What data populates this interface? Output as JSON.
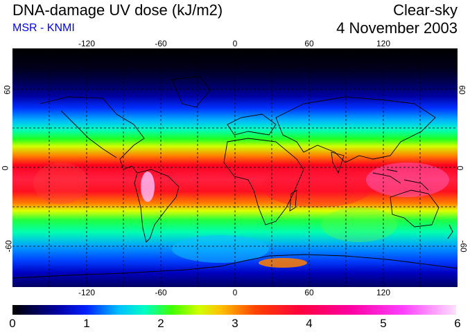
{
  "header": {
    "title": "DNA-damage UV dose (kJ/m2)",
    "source": "MSR - KNMI",
    "condition": "Clear-sky",
    "date": "4 November 2003"
  },
  "map": {
    "lon_labels_top": [
      "-120",
      "-60",
      "0",
      "60",
      "120"
    ],
    "lon_labels_bottom": [
      "-120",
      "-60",
      "0",
      "60",
      "120"
    ],
    "lat_labels_left": [
      "60",
      "0",
      "-60"
    ],
    "lat_labels_right": [
      "60",
      "0",
      "-60"
    ]
  },
  "colorbar": {
    "labels": [
      "0",
      "1",
      "2",
      "3",
      "4",
      "5",
      "6"
    ]
  }
}
